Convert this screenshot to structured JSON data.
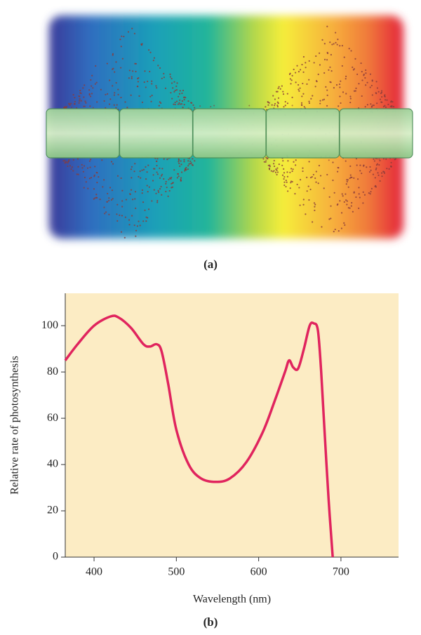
{
  "figure": {
    "label_a": "(a)",
    "label_b": "(b)"
  },
  "chart_data": {
    "type": "line",
    "xlabel": "Wavelength (nm)",
    "ylabel": "Relative rate of photosynthesis",
    "x": [
      365,
      380,
      400,
      420,
      430,
      445,
      460,
      468,
      476,
      482,
      490,
      500,
      515,
      530,
      548,
      565,
      585,
      605,
      620,
      632,
      637,
      642,
      648,
      655,
      662,
      667,
      672,
      676,
      680,
      685,
      690
    ],
    "values": [
      85,
      92,
      100,
      104,
      103.5,
      99,
      92,
      91,
      92,
      89,
      75,
      55,
      40,
      34,
      32.5,
      34,
      41,
      54,
      68,
      80,
      85,
      82,
      81.5,
      90,
      100,
      101,
      98,
      80,
      55,
      25,
      0
    ],
    "color": "#e0245e",
    "background": "#fcecc4",
    "xlim": [
      365,
      770
    ],
    "ylim": [
      0,
      114
    ],
    "xticks": [
      400,
      500,
      600,
      700
    ],
    "yticks": [
      0,
      20,
      40,
      60,
      80,
      100
    ]
  }
}
